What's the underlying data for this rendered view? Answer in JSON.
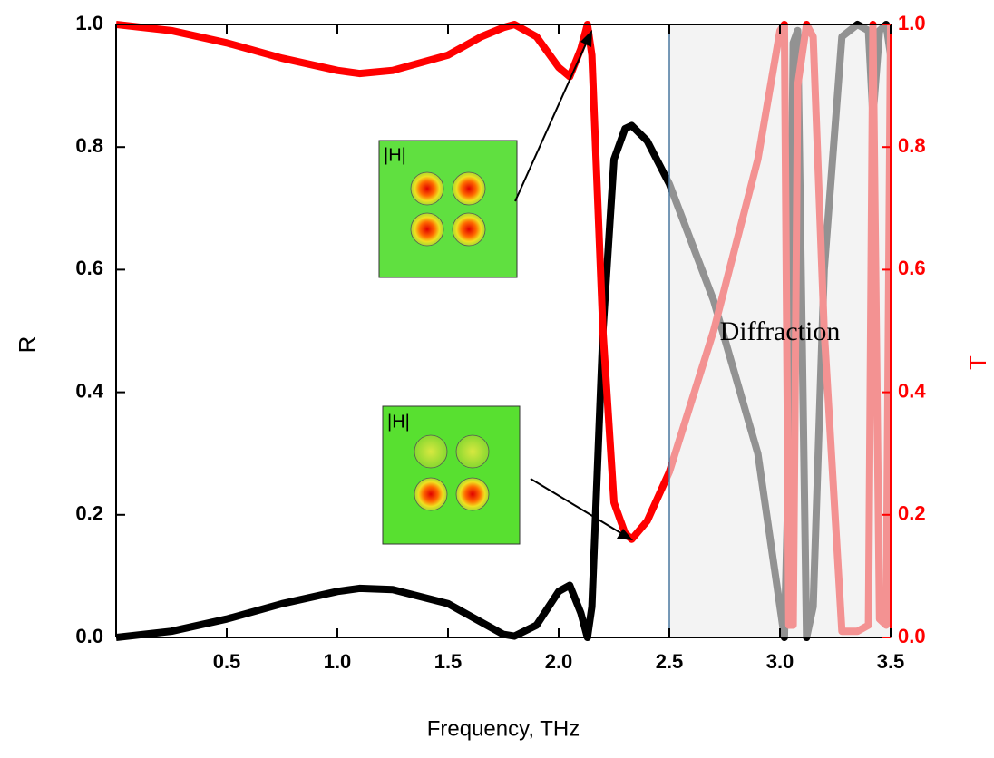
{
  "chart_data": {
    "type": "line",
    "x_label": "Frequency, THz",
    "y_label": "R",
    "y2_label": "T",
    "x": [
      0,
      0.25,
      0.5,
      0.75,
      1.0,
      1.1,
      1.25,
      1.5,
      1.65,
      1.75,
      1.8,
      1.9,
      2.0,
      2.05,
      2.1,
      2.13,
      2.15,
      2.2,
      2.25,
      2.3,
      2.33,
      2.4,
      2.5,
      2.7,
      2.9,
      3.0,
      3.02,
      3.04,
      3.06,
      3.08,
      3.12,
      3.15,
      3.2,
      3.28,
      3.35,
      3.4,
      3.42,
      3.45,
      3.48,
      3.5
    ],
    "series": [
      {
        "name": "R",
        "color": "#000000",
        "values": [
          0,
          0.01,
          0.03,
          0.055,
          0.075,
          0.08,
          0.078,
          0.055,
          0.025,
          0.005,
          0.002,
          0.02,
          0.075,
          0.085,
          0.04,
          0,
          0.05,
          0.5,
          0.78,
          0.83,
          0.835,
          0.81,
          0.74,
          0.55,
          0.3,
          0.05,
          0,
          0.3,
          0.97,
          0.99,
          0,
          0.05,
          0.6,
          0.98,
          1.0,
          0.99,
          0.85,
          0.99,
          1.0,
          0.95
        ]
      },
      {
        "name": "T",
        "color": "#ff0000",
        "axis": "y2",
        "values": [
          1.0,
          0.99,
          0.97,
          0.945,
          0.925,
          0.92,
          0.925,
          0.95,
          0.98,
          0.995,
          1.0,
          0.98,
          0.93,
          0.915,
          0.96,
          1.0,
          0.95,
          0.5,
          0.22,
          0.17,
          0.16,
          0.19,
          0.27,
          0.5,
          0.78,
          0.99,
          1.0,
          0.02,
          0.02,
          0.9,
          1.0,
          0.98,
          0.5,
          0.01,
          0.01,
          0.02,
          1.0,
          0.03,
          0.02,
          1.0
        ]
      }
    ],
    "xlim": [
      0,
      3.5
    ],
    "xticks": [
      0.5,
      {
        "value": 1,
        "label": "1.0"
      },
      1.5,
      {
        "value": 2,
        "label": "2.0"
      },
      2.5,
      {
        "value": 3,
        "label": "3.0"
      },
      3.5
    ],
    "ylim": [
      0,
      1
    ],
    "yticks": [
      {
        "value": 0,
        "label": "0.0"
      },
      0.2,
      0.4,
      0.6,
      0.8,
      {
        "value": 1,
        "label": "1.0"
      }
    ],
    "y2lim": [
      0,
      1
    ],
    "y2ticks": [
      {
        "value": 0,
        "label": "0.0"
      },
      0.2,
      0.4,
      0.6,
      0.8,
      {
        "value": 1,
        "label": "1.0"
      }
    ],
    "shaded_region": {
      "x": [
        2.5,
        3.5
      ],
      "label": "Diffraction"
    },
    "annotations": [
      "|H|",
      "|H|"
    ]
  }
}
